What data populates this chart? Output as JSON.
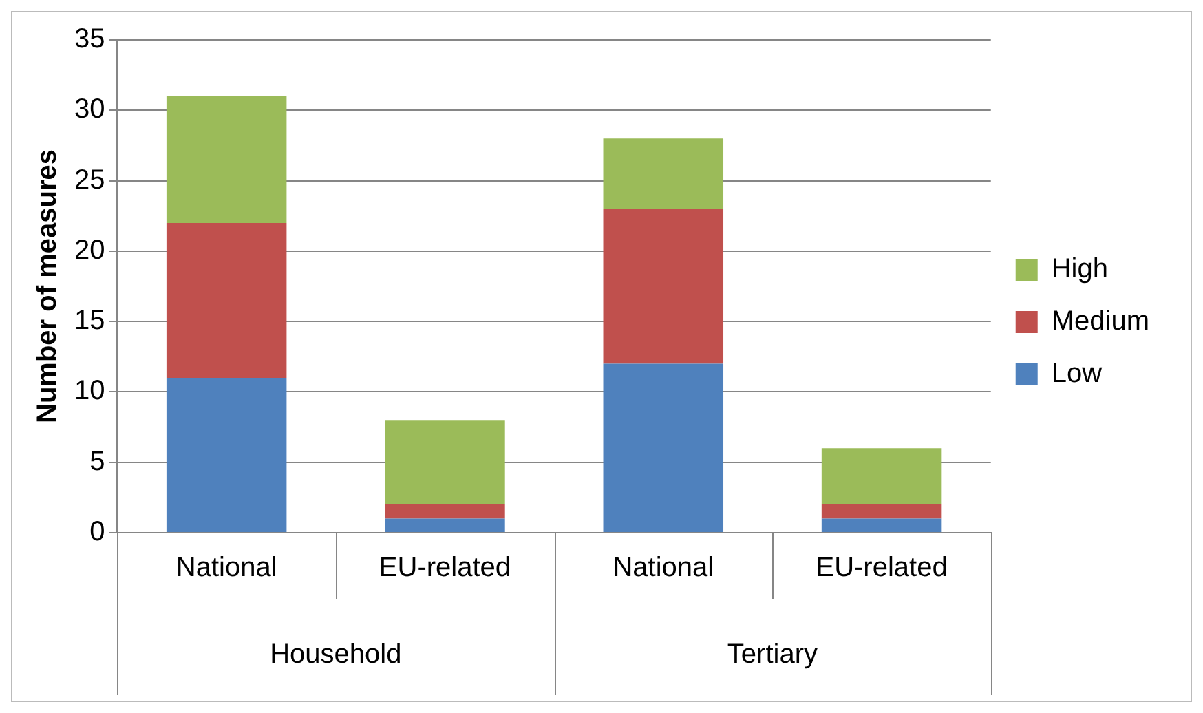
{
  "chart_data": {
    "type": "bar",
    "stacked": true,
    "ylabel": "Number of measures",
    "categories": [
      "National",
      "EU-related",
      "National",
      "EU-related"
    ],
    "annotations": [
      "Household",
      "Tertiary"
    ],
    "series": [
      {
        "name": "Low",
        "color": "#4f81bd",
        "values": [
          11,
          1,
          12,
          1
        ]
      },
      {
        "name": "Medium",
        "color": "#c0504d",
        "values": [
          11,
          1,
          11,
          1
        ]
      },
      {
        "name": "High",
        "color": "#9bbb59",
        "values": [
          9,
          6,
          5,
          4
        ]
      }
    ],
    "ylim": [
      0,
      35
    ],
    "yticks": [
      0,
      5,
      10,
      15,
      20,
      25,
      30,
      35
    ],
    "grid": "y",
    "legend": "right"
  }
}
